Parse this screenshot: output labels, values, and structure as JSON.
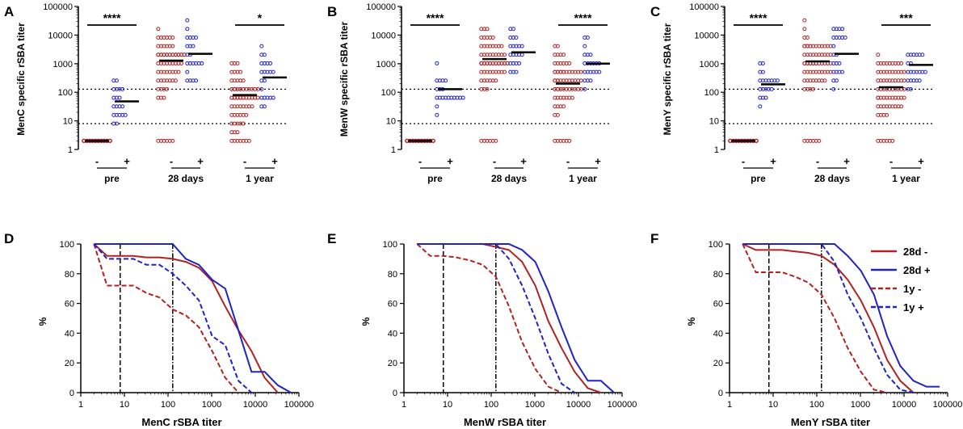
{
  "colors": {
    "red": "#b22222",
    "blue": "#2222cc",
    "black": "#000000"
  },
  "scatter_panels": [
    {
      "id": "A",
      "letter": "A",
      "ylabel": "MenC specific rSBA titer",
      "cutoffs": [
        8,
        128
      ],
      "medians": [
        2,
        48,
        1280,
        2200,
        80,
        330
      ],
      "brackets": [
        {
          "text": "****",
          "from": 0,
          "to": 1
        },
        {
          "text": "*",
          "from": 4,
          "to": 5
        }
      ]
    },
    {
      "id": "B",
      "letter": "B",
      "ylabel": "MenW specific rSBA titer",
      "cutoffs": [
        8,
        128
      ],
      "medians": [
        2,
        128,
        1450,
        2500,
        200,
        1000
      ],
      "brackets": [
        {
          "text": "****",
          "from": 0,
          "to": 1
        },
        {
          "text": "****",
          "from": 4,
          "to": 5
        }
      ]
    },
    {
      "id": "C",
      "letter": "C",
      "ylabel": "MenY specific rSBA titer",
      "cutoffs": [
        8,
        128
      ],
      "medians": [
        2,
        190,
        1200,
        2200,
        150,
        900
      ],
      "brackets": [
        {
          "text": "****",
          "from": 0,
          "to": 1
        },
        {
          "text": "***",
          "from": 4,
          "to": 5
        }
      ]
    }
  ],
  "scatter_common": {
    "y_ticks": [
      "1",
      "10",
      "100",
      "1000",
      "10000",
      "100000"
    ],
    "group_labels": [
      "pre",
      "28 days",
      "1 year"
    ],
    "sign_labels": [
      "-",
      "+",
      "-",
      "+",
      "-",
      "+"
    ]
  },
  "curve_common": {
    "x_ticks": [
      "1",
      "10",
      "100",
      "1000",
      "10000",
      "100000"
    ],
    "y_ticks": [
      "0",
      "20",
      "40",
      "60",
      "80",
      "100"
    ],
    "ylabel": "%",
    "vlines": [
      8,
      128
    ]
  },
  "legend": [
    "28d -",
    "28d +",
    "1y -",
    "1y +"
  ],
  "chart_data": [
    {
      "type": "scatter",
      "panel": "A",
      "title": "",
      "xlabel": "",
      "ylabel": "MenC specific rSBA titer",
      "y_scale": "log",
      "ylim": [
        1,
        100000
      ],
      "categories": [
        "pre -",
        "pre +",
        "28 days -",
        "28 days +",
        "1 year -",
        "1 year +"
      ],
      "median_values": [
        2,
        48,
        1280,
        2200,
        80,
        330
      ],
      "reference_lines": [
        8,
        128
      ]
    },
    {
      "type": "scatter",
      "panel": "B",
      "title": "",
      "xlabel": "",
      "ylabel": "MenW specific rSBA titer",
      "y_scale": "log",
      "ylim": [
        1,
        100000
      ],
      "categories": [
        "pre -",
        "pre +",
        "28 days -",
        "28 days +",
        "1 year -",
        "1 year +"
      ],
      "median_values": [
        2,
        128,
        1450,
        2500,
        200,
        1000
      ],
      "reference_lines": [
        8,
        128
      ]
    },
    {
      "type": "scatter",
      "panel": "C",
      "title": "",
      "xlabel": "",
      "ylabel": "MenY specific rSBA titer",
      "y_scale": "log",
      "ylim": [
        1,
        100000
      ],
      "categories": [
        "pre -",
        "pre +",
        "28 days -",
        "28 days +",
        "1 year -",
        "1 year +"
      ],
      "median_values": [
        2,
        190,
        1200,
        2200,
        150,
        900
      ],
      "reference_lines": [
        8,
        128
      ]
    },
    {
      "type": "line",
      "panel": "D",
      "title": "",
      "xlabel": "MenC rSBA titer",
      "ylabel": "%",
      "x_scale": "log",
      "xlim": [
        1,
        100000
      ],
      "ylim": [
        0,
        100
      ],
      "series": [
        {
          "name": "28d -",
          "color": "#b22222",
          "dash": "solid",
          "x": [
            2,
            4,
            8,
            16,
            32,
            64,
            128,
            256,
            512,
            1024,
            2048,
            4096,
            8192,
            16384,
            32768
          ],
          "y": [
            100,
            92,
            92,
            92,
            91,
            91,
            90,
            88,
            84,
            75,
            58,
            42,
            28,
            10,
            0
          ]
        },
        {
          "name": "28d +",
          "color": "#2222cc",
          "dash": "solid",
          "x": [
            2,
            128,
            256,
            512,
            1024,
            2048,
            4096,
            8192,
            16384,
            32768,
            65536
          ],
          "y": [
            100,
            100,
            90,
            86,
            76,
            70,
            42,
            14,
            14,
            5,
            0
          ]
        },
        {
          "name": "1y -",
          "color": "#b22222",
          "dash": "dash",
          "x": [
            2,
            4,
            8,
            16,
            32,
            64,
            128,
            256,
            512,
            1024,
            2048,
            4096
          ],
          "y": [
            100,
            72,
            72,
            72,
            67,
            64,
            56,
            52,
            44,
            28,
            10,
            0
          ]
        },
        {
          "name": "1y +",
          "color": "#2222cc",
          "dash": "dash",
          "x": [
            2,
            4,
            8,
            16,
            32,
            64,
            128,
            256,
            512,
            1024,
            2048,
            4096,
            8192
          ],
          "y": [
            100,
            90,
            90,
            90,
            86,
            86,
            80,
            72,
            62,
            38,
            32,
            8,
            0
          ]
        }
      ]
    },
    {
      "type": "line",
      "panel": "E",
      "title": "",
      "xlabel": "MenW rSBA titer",
      "ylabel": "%",
      "x_scale": "log",
      "xlim": [
        1,
        100000
      ],
      "ylim": [
        0,
        100
      ],
      "series": [
        {
          "name": "28d -",
          "color": "#b22222",
          "dash": "solid",
          "x": [
            2,
            64,
            128,
            256,
            512,
            1024,
            2048,
            4096,
            8192,
            16384,
            32768
          ],
          "y": [
            100,
            100,
            98,
            96,
            88,
            72,
            48,
            30,
            14,
            3,
            0
          ]
        },
        {
          "name": "28d +",
          "color": "#2222cc",
          "dash": "solid",
          "x": [
            2,
            256,
            512,
            1024,
            2048,
            4096,
            8192,
            16384,
            32768,
            65536
          ],
          "y": [
            100,
            100,
            96,
            88,
            68,
            44,
            22,
            8,
            8,
            0
          ]
        },
        {
          "name": "1y -",
          "color": "#b22222",
          "dash": "dash",
          "x": [
            2,
            4,
            8,
            16,
            32,
            64,
            128,
            256,
            512,
            1024,
            2048,
            4096
          ],
          "y": [
            100,
            92,
            92,
            91,
            89,
            86,
            78,
            58,
            34,
            16,
            4,
            0
          ]
        },
        {
          "name": "1y +",
          "color": "#2222cc",
          "dash": "dash",
          "x": [
            2,
            128,
            256,
            512,
            1024,
            2048,
            4096,
            8192
          ],
          "y": [
            100,
            100,
            90,
            72,
            50,
            26,
            6,
            0
          ]
        }
      ]
    },
    {
      "type": "line",
      "panel": "F",
      "title": "",
      "xlabel": "MenY rSBA titer",
      "ylabel": "%",
      "x_scale": "log",
      "xlim": [
        1,
        100000
      ],
      "ylim": [
        0,
        100
      ],
      "series": [
        {
          "name": "28d -",
          "color": "#b22222",
          "dash": "solid",
          "x": [
            2,
            4,
            8,
            16,
            32,
            64,
            128,
            256,
            512,
            1024,
            2048,
            4096,
            8192,
            16384
          ],
          "y": [
            100,
            96,
            96,
            96,
            95,
            94,
            92,
            86,
            76,
            62,
            44,
            22,
            8,
            0
          ]
        },
        {
          "name": "28d +",
          "color": "#2222cc",
          "dash": "solid",
          "x": [
            2,
            256,
            512,
            1024,
            2048,
            4096,
            8192,
            16384,
            32768,
            65536
          ],
          "y": [
            100,
            100,
            92,
            82,
            66,
            38,
            18,
            8,
            4,
            4
          ]
        },
        {
          "name": "1y -",
          "color": "#b22222",
          "dash": "dash",
          "x": [
            2,
            4,
            8,
            16,
            32,
            64,
            128,
            256,
            512,
            1024,
            2048,
            4096
          ],
          "y": [
            100,
            81,
            81,
            81,
            78,
            74,
            66,
            50,
            30,
            14,
            2,
            0
          ]
        },
        {
          "name": "1y +",
          "color": "#2222cc",
          "dash": "dash",
          "x": [
            2,
            128,
            256,
            512,
            1024,
            2048,
            4096,
            8192,
            16384
          ],
          "y": [
            100,
            100,
            88,
            66,
            50,
            30,
            12,
            2,
            0
          ]
        }
      ]
    }
  ]
}
